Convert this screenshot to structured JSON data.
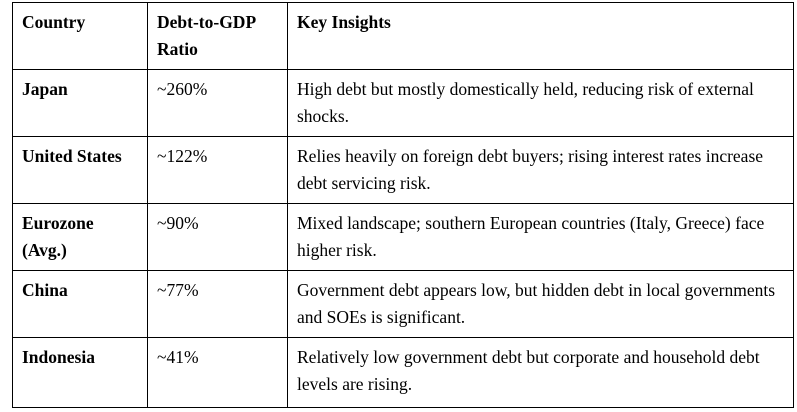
{
  "table": {
    "headers": [
      "Country",
      "Debt-to-GDP Ratio",
      "Key Insights"
    ],
    "rows": [
      {
        "country": "Japan",
        "ratio": "~260%",
        "insight": "High debt but mostly domestically held, reducing risk of external shocks."
      },
      {
        "country": "United States",
        "ratio": "~122%",
        "insight": "Relies heavily on foreign debt buyers; rising interest rates increase debt servicing risk."
      },
      {
        "country": "Eurozone (Avg.)",
        "ratio": "~90%",
        "insight": "Mixed landscape; southern European countries (Italy, Greece) face higher risk."
      },
      {
        "country": "China",
        "ratio": "~77%",
        "insight": "Government debt appears low, but hidden debt in local governments and SOEs is significant."
      },
      {
        "country": "Indonesia",
        "ratio": "~41%",
        "insight": "Relatively low government debt but corporate and household debt levels are rising."
      }
    ]
  }
}
